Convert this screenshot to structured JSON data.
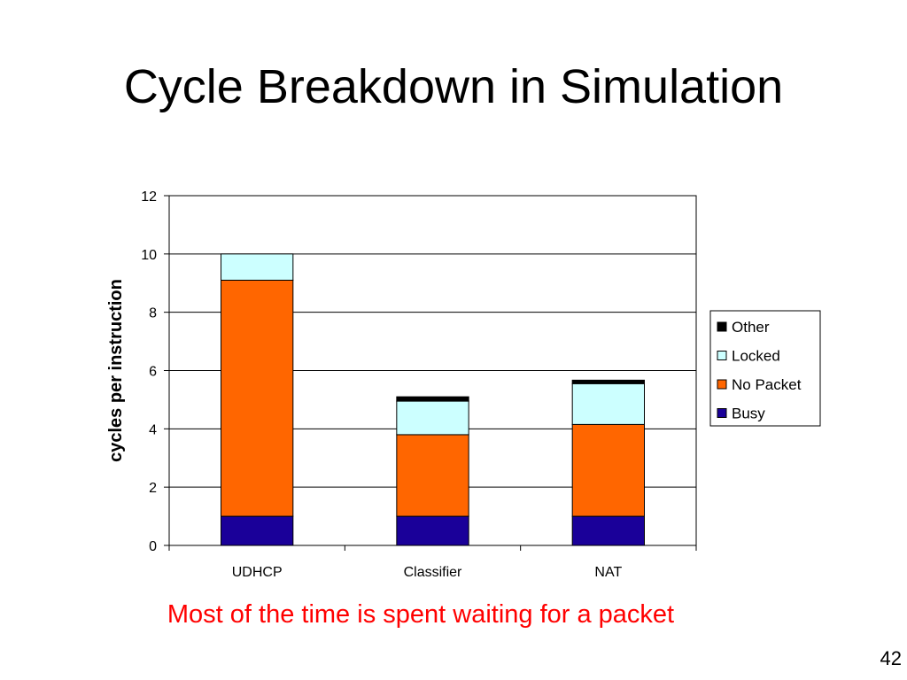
{
  "slide": {
    "title": "Cycle Breakdown in Simulation",
    "caption": "Most of the time is spent waiting for a packet",
    "page_number": "42"
  },
  "chart_data": {
    "type": "bar",
    "stacked": true,
    "categories": [
      "UDHCP",
      "Classifier",
      "NAT"
    ],
    "series": [
      {
        "name": "Busy",
        "color": "#1a0099",
        "values": [
          1.0,
          1.0,
          1.0
        ]
      },
      {
        "name": "No Packet",
        "color": "#ff6600",
        "values": [
          8.1,
          2.8,
          3.15
        ]
      },
      {
        "name": "Locked",
        "color": "#ccffff",
        "values": [
          0.9,
          1.15,
          1.4
        ]
      },
      {
        "name": "Other",
        "color": "#000000",
        "values": [
          0.0,
          0.15,
          0.12
        ]
      }
    ],
    "legend_order": [
      "Other",
      "Locked",
      "No Packet",
      "Busy"
    ],
    "ylabel": "cycles per instruction",
    "xlabel": "",
    "ylim": [
      0,
      12
    ],
    "yticks": [
      0,
      2,
      4,
      6,
      8,
      10,
      12
    ],
    "grid": true,
    "legend_position": "right"
  }
}
